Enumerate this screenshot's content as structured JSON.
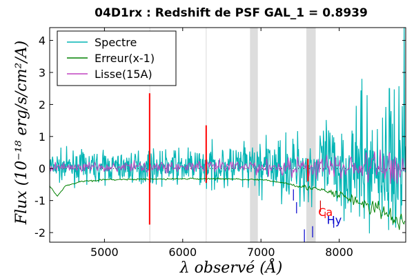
{
  "chart_data": {
    "type": "line",
    "title": "04D1rx : Redshift de PSF GAL_1 = 0.8939",
    "xlabel": "λ observé (Å)",
    "ylabel": "Flux (10⁻¹⁸ erg/s/cm²/A)",
    "xlim": [
      4300,
      8850
    ],
    "ylim": [
      -2.3,
      4.4
    ],
    "x_ticks": [
      "5000",
      "6000",
      "7000",
      "8000"
    ],
    "x_tick_values": [
      5000,
      6000,
      7000,
      8000
    ],
    "y_ticks": [
      "-2",
      "-1",
      "0",
      "1",
      "2",
      "3",
      "4"
    ],
    "y_tick_values": [
      -2,
      -1,
      0,
      1,
      2,
      3,
      4
    ],
    "zero_line": true,
    "legend": {
      "placement": "top-left",
      "entries": [
        {
          "label": "Spectre",
          "color": "#00b4b4"
        },
        {
          "label": "Erreur(x-1)",
          "color": "#008000"
        },
        {
          "label": "Lisse(15A)",
          "color": "#bf40bf"
        }
      ]
    },
    "shaded_bands": [
      {
        "x": [
          5575,
          5585
        ],
        "color": "#dddddd"
      },
      {
        "x": [
          6295,
          6305
        ],
        "color": "#dddddd"
      },
      {
        "x": [
          6860,
          6960
        ],
        "color": "#dddddd"
      },
      {
        "x": [
          7580,
          7700
        ],
        "color": "#dddddd"
      }
    ],
    "sky_lines": [
      {
        "x": 5577,
        "y": [
          -1.75,
          2.35
        ],
        "color": "#ff0000"
      },
      {
        "x": 6300,
        "y": [
          -0.45,
          1.35
        ],
        "color": "#ff0000"
      },
      {
        "x": 7600,
        "y": [
          -0.4,
          0.3
        ],
        "color": "#ff0000"
      }
    ],
    "line_markers": [
      {
        "label": "",
        "x": 7415,
        "y": [
          -0.65,
          -1.0
        ],
        "color": "#0000cc"
      },
      {
        "label": "",
        "x": 7455,
        "y": [
          -1.05,
          -1.4
        ],
        "color": "#0000cc"
      },
      {
        "label": "",
        "x": 7555,
        "y": [
          -1.9,
          -2.3
        ],
        "color": "#0000cc"
      },
      {
        "label": "",
        "x": 7660,
        "y": [
          -1.8,
          -2.15
        ],
        "color": "#0000cc"
      },
      {
        "label": "",
        "x": 7760,
        "y": [
          -1.0,
          -1.35
        ],
        "color": "#cc0000"
      },
      {
        "label": "Ca",
        "x": 7820,
        "y": [
          -1.35,
          -1.55
        ],
        "color": "#ff0000"
      },
      {
        "label": "Hy",
        "x": 7930,
        "y": [
          -1.6,
          -1.85
        ],
        "color": "#0000cc"
      }
    ],
    "series": [
      {
        "name": "Spectre",
        "color": "#00b4b4",
        "x_range": [
          4300,
          8850
        ],
        "noise_start": 0.35,
        "noise_end": 1.8,
        "extremes_x": [
          8260,
          8290,
          8640,
          8830
        ],
        "extremes_y": [
          -1.5,
          2.8,
          2.5,
          4.5
        ]
      },
      {
        "name": "Erreur(x-1)",
        "color": "#008000",
        "points": [
          [
            4300,
            -0.55
          ],
          [
            4400,
            -0.85
          ],
          [
            4500,
            -0.55
          ],
          [
            4700,
            -0.4
          ],
          [
            5000,
            -0.35
          ],
          [
            6000,
            -0.32
          ],
          [
            6500,
            -0.32
          ],
          [
            7000,
            -0.35
          ],
          [
            7300,
            -0.45
          ],
          [
            7500,
            -0.55
          ],
          [
            7800,
            -0.7
          ],
          [
            8100,
            -0.9
          ],
          [
            8300,
            -1.1
          ],
          [
            8500,
            -1.3
          ],
          [
            8700,
            -1.55
          ],
          [
            8850,
            -1.8
          ]
        ]
      },
      {
        "name": "Lisse(15A)",
        "color": "#bf40bf",
        "x_range": [
          4300,
          8850
        ],
        "noise_start": 0.12,
        "noise_end": 0.5
      }
    ]
  }
}
